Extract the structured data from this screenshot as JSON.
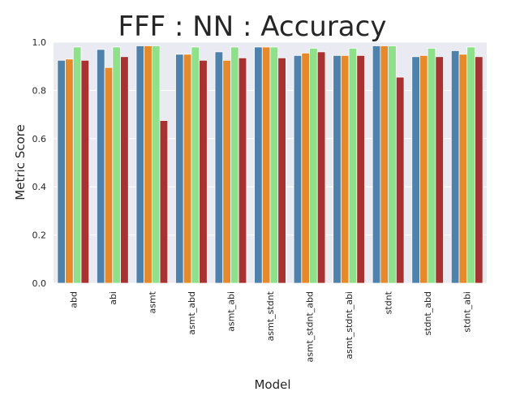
{
  "chart_data": {
    "type": "bar",
    "title": "FFF : NN : Accuracy",
    "xlabel": "Model",
    "ylabel": "Metric Score",
    "ylim": [
      0.0,
      1.0
    ],
    "yticks": [
      "0.0",
      "0.2",
      "0.4",
      "0.6",
      "0.8",
      "1.0"
    ],
    "grid": true,
    "categories": [
      "abd",
      "abi",
      "asmt",
      "asmt_abd",
      "asmt_abi",
      "asmt_stdnt",
      "asmt_stdnt_abd",
      "asmt_stdnt_abi",
      "stdnt",
      "stdnt_abd",
      "stdnt_abi"
    ],
    "series": [
      {
        "color": "#4f81ad",
        "values": [
          0.925,
          0.97,
          0.985,
          0.95,
          0.96,
          0.98,
          0.945,
          0.945,
          0.985,
          0.94,
          0.965
        ]
      },
      {
        "color": "#e5892a",
        "values": [
          0.93,
          0.895,
          0.985,
          0.95,
          0.925,
          0.98,
          0.955,
          0.945,
          0.985,
          0.945,
          0.95
        ]
      },
      {
        "color": "#8fe08a",
        "values": [
          0.98,
          0.98,
          0.985,
          0.98,
          0.98,
          0.98,
          0.975,
          0.975,
          0.985,
          0.975,
          0.98
        ]
      },
      {
        "color": "#a83232",
        "values": [
          0.925,
          0.94,
          0.675,
          0.925,
          0.935,
          0.935,
          0.96,
          0.945,
          0.855,
          0.94,
          0.94
        ]
      }
    ]
  }
}
